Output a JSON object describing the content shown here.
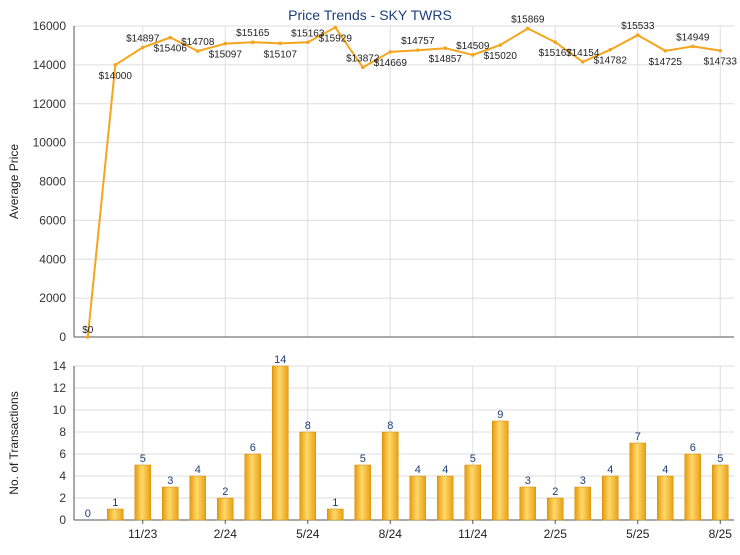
{
  "chart_data": [
    {
      "type": "line",
      "title": "Price Trends - SKY TWRS",
      "ylabel": "Average Price",
      "ylim": [
        0,
        16000
      ],
      "yticks": [
        0,
        2000,
        4000,
        6000,
        8000,
        10000,
        12000,
        14000,
        16000
      ],
      "grid": true,
      "color": "#f5a51d",
      "values": [
        0,
        14000,
        14897,
        15406,
        14708,
        15097,
        15165,
        15107,
        15163,
        15929,
        13872,
        14669,
        14757,
        14857,
        14509,
        15020,
        15869,
        15167,
        14154,
        14782,
        15533,
        14725,
        14949,
        14733
      ],
      "labels": [
        "$0",
        "$14000",
        "$14897",
        "$15406",
        "$14708",
        "$15097",
        "$15165",
        "$15107",
        "$15163",
        "$15929",
        "$13872",
        "$14669",
        "$14757",
        "$14857",
        "$14509",
        "$15020",
        "$15869",
        "$15167",
        "$14154",
        "$14782",
        "$15533",
        "$14725",
        "$14949",
        "$14733"
      ]
    },
    {
      "type": "bar",
      "ylabel": "No. of Transactions",
      "ylim": [
        0,
        14
      ],
      "yticks": [
        0,
        2,
        4,
        6,
        8,
        10,
        12,
        14
      ],
      "grid": true,
      "color": "#f2a81d",
      "values": [
        0,
        1,
        5,
        3,
        4,
        2,
        6,
        14,
        8,
        1,
        5,
        8,
        4,
        4,
        5,
        9,
        3,
        2,
        3,
        4,
        7,
        4,
        6,
        5
      ],
      "xticks": [
        {
          "index": 2,
          "label": "11/23"
        },
        {
          "index": 5,
          "label": "2/24"
        },
        {
          "index": 8,
          "label": "5/24"
        },
        {
          "index": 11,
          "label": "8/24"
        },
        {
          "index": 14,
          "label": "11/24"
        },
        {
          "index": 17,
          "label": "2/25"
        },
        {
          "index": 20,
          "label": "5/25"
        },
        {
          "index": 23,
          "label": "8/25"
        }
      ]
    }
  ]
}
